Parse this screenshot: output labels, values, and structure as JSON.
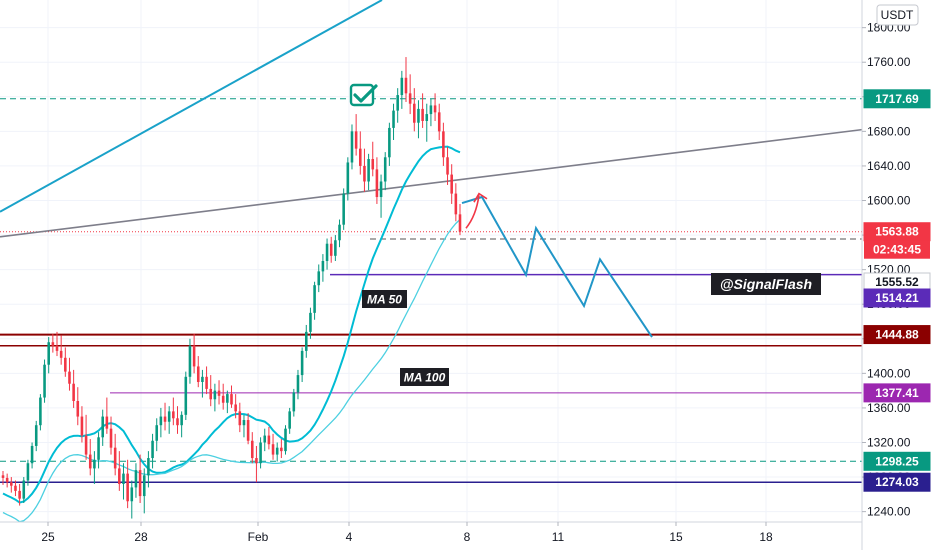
{
  "currency_label": "USDT",
  "chart_data": {
    "type": "candlestick",
    "ylim": [
      1228,
      1832
    ],
    "price_ticks": [
      "1240.00",
      "1280.00",
      "1320.00",
      "1360.00",
      "1400.00",
      "1440.00",
      "1480.00",
      "1520.00",
      "1560.00",
      "1600.00",
      "1640.00",
      "1680.00",
      "1720.00",
      "1760.00",
      "1800.00",
      "1840.00"
    ],
    "date_ticks": [
      "25",
      "28",
      "Feb",
      "4",
      "8",
      "11",
      "15",
      "18"
    ],
    "candles": [
      [
        1282,
        1287,
        1271,
        1279
      ],
      [
        1279,
        1284,
        1268,
        1274
      ],
      [
        1274,
        1280,
        1262,
        1270
      ],
      [
        1270,
        1276,
        1258,
        1264
      ],
      [
        1264,
        1272,
        1247,
        1255
      ],
      [
        1255,
        1280,
        1250,
        1276
      ],
      [
        1276,
        1300,
        1270,
        1296
      ],
      [
        1296,
        1320,
        1290,
        1316
      ],
      [
        1316,
        1345,
        1310,
        1340
      ],
      [
        1340,
        1376,
        1334,
        1372
      ],
      [
        1372,
        1416,
        1366,
        1410
      ],
      [
        1410,
        1442,
        1400,
        1436
      ],
      [
        1436,
        1446,
        1424,
        1432
      ],
      [
        1432,
        1448,
        1420,
        1426
      ],
      [
        1426,
        1444,
        1410,
        1418
      ],
      [
        1418,
        1430,
        1396,
        1402
      ],
      [
        1402,
        1418,
        1380,
        1388
      ],
      [
        1388,
        1404,
        1360,
        1368
      ],
      [
        1368,
        1384,
        1340,
        1350
      ],
      [
        1350,
        1362,
        1320,
        1328
      ],
      [
        1328,
        1352,
        1300,
        1306
      ],
      [
        1306,
        1324,
        1282,
        1290
      ],
      [
        1290,
        1310,
        1272,
        1300
      ],
      [
        1300,
        1332,
        1290,
        1326
      ],
      [
        1326,
        1358,
        1316,
        1350
      ],
      [
        1350,
        1372,
        1330,
        1336
      ],
      [
        1336,
        1350,
        1306,
        1314
      ],
      [
        1314,
        1330,
        1282,
        1290
      ],
      [
        1290,
        1310,
        1264,
        1272
      ],
      [
        1272,
        1296,
        1254,
        1284
      ],
      [
        1284,
        1300,
        1244,
        1252
      ],
      [
        1252,
        1276,
        1232,
        1268
      ],
      [
        1268,
        1296,
        1256,
        1288
      ],
      [
        1288,
        1306,
        1250,
        1258
      ],
      [
        1258,
        1290,
        1238,
        1282
      ],
      [
        1282,
        1310,
        1268,
        1302
      ],
      [
        1302,
        1330,
        1290,
        1322
      ],
      [
        1322,
        1348,
        1310,
        1340
      ],
      [
        1340,
        1360,
        1326,
        1350
      ],
      [
        1350,
        1366,
        1334,
        1344
      ],
      [
        1344,
        1362,
        1330,
        1356
      ],
      [
        1356,
        1372,
        1340,
        1348
      ],
      [
        1348,
        1362,
        1330,
        1340
      ],
      [
        1340,
        1356,
        1326,
        1352
      ],
      [
        1352,
        1402,
        1346,
        1396
      ],
      [
        1396,
        1440,
        1388,
        1432
      ],
      [
        1432,
        1446,
        1400,
        1408
      ],
      [
        1408,
        1420,
        1384,
        1390
      ],
      [
        1390,
        1404,
        1372,
        1396
      ],
      [
        1396,
        1408,
        1376,
        1382
      ],
      [
        1382,
        1398,
        1362,
        1370
      ],
      [
        1370,
        1388,
        1356,
        1380
      ],
      [
        1380,
        1392,
        1364,
        1374
      ],
      [
        1374,
        1388,
        1358,
        1366
      ],
      [
        1366,
        1380,
        1354,
        1376
      ],
      [
        1376,
        1386,
        1360,
        1364
      ],
      [
        1364,
        1376,
        1348,
        1356
      ],
      [
        1356,
        1366,
        1332,
        1340
      ],
      [
        1340,
        1352,
        1326,
        1346
      ],
      [
        1346,
        1354,
        1318,
        1322
      ],
      [
        1322,
        1332,
        1296,
        1302
      ],
      [
        1302,
        1316,
        1274,
        1296
      ],
      [
        1296,
        1326,
        1290,
        1320
      ],
      [
        1320,
        1336,
        1310,
        1328
      ],
      [
        1328,
        1338,
        1312,
        1318
      ],
      [
        1318,
        1330,
        1300,
        1306
      ],
      [
        1306,
        1320,
        1298,
        1314
      ],
      [
        1314,
        1324,
        1302,
        1310
      ],
      [
        1310,
        1340,
        1306,
        1336
      ],
      [
        1336,
        1360,
        1330,
        1356
      ],
      [
        1356,
        1382,
        1350,
        1378
      ],
      [
        1378,
        1404,
        1370,
        1398
      ],
      [
        1398,
        1430,
        1390,
        1426
      ],
      [
        1426,
        1456,
        1418,
        1448
      ],
      [
        1448,
        1476,
        1440,
        1470
      ],
      [
        1470,
        1506,
        1462,
        1502
      ],
      [
        1502,
        1526,
        1494,
        1518
      ],
      [
        1518,
        1538,
        1506,
        1530
      ],
      [
        1530,
        1556,
        1520,
        1550
      ],
      [
        1550,
        1558,
        1528,
        1536
      ],
      [
        1536,
        1560,
        1530,
        1554
      ],
      [
        1554,
        1578,
        1546,
        1572
      ],
      [
        1572,
        1614,
        1566,
        1608
      ],
      [
        1608,
        1650,
        1600,
        1644
      ],
      [
        1644,
        1688,
        1636,
        1680
      ],
      [
        1680,
        1700,
        1652,
        1660
      ],
      [
        1660,
        1680,
        1630,
        1640
      ],
      [
        1640,
        1660,
        1610,
        1622
      ],
      [
        1622,
        1654,
        1612,
        1648
      ],
      [
        1648,
        1668,
        1628,
        1636
      ],
      [
        1636,
        1650,
        1596,
        1604
      ],
      [
        1604,
        1630,
        1580,
        1622
      ],
      [
        1622,
        1656,
        1612,
        1650
      ],
      [
        1650,
        1690,
        1640,
        1684
      ],
      [
        1684,
        1712,
        1670,
        1704
      ],
      [
        1704,
        1730,
        1690,
        1722
      ],
      [
        1722,
        1750,
        1706,
        1742
      ],
      [
        1742,
        1766,
        1714,
        1724
      ],
      [
        1724,
        1746,
        1700,
        1712
      ],
      [
        1712,
        1730,
        1680,
        1690
      ],
      [
        1690,
        1716,
        1672,
        1706
      ],
      [
        1706,
        1724,
        1684,
        1692
      ],
      [
        1692,
        1712,
        1668,
        1700
      ],
      [
        1700,
        1718,
        1686,
        1710
      ],
      [
        1710,
        1724,
        1692,
        1702
      ],
      [
        1702,
        1712,
        1670,
        1680
      ],
      [
        1680,
        1690,
        1640,
        1650
      ],
      [
        1650,
        1662,
        1618,
        1630
      ],
      [
        1630,
        1642,
        1596,
        1608
      ],
      [
        1608,
        1620,
        1576,
        1584
      ],
      [
        1584,
        1596,
        1560,
        1564
      ]
    ],
    "horizontal_levels": [
      {
        "label": "1717.69",
        "value": 1717.69,
        "color": "#089981",
        "style": "dashed",
        "width": 1
      },
      {
        "label": "1563.88",
        "value": 1563.88,
        "color": "#f23645",
        "style": "dotted",
        "width": 1
      },
      {
        "label": "1555.52",
        "value": 1555.52,
        "color": "#555555",
        "style": "dashed",
        "width": 1
      },
      {
        "label": "1514.21",
        "value": 1514.21,
        "color": "#5b2bb8",
        "style": "solid",
        "width": 1.5
      },
      {
        "label": "1444.88",
        "value": 1444.88,
        "color": "#8b0000",
        "style": "solid",
        "width": 2
      },
      {
        "label": "1377.41",
        "value": 1377.41,
        "color": "#9c27b0",
        "style": "solid",
        "width": 1
      },
      {
        "label": "1298.25",
        "value": 1298.25,
        "color": "#089981",
        "style": "dashed",
        "width": 1
      },
      {
        "label": "1274.03",
        "value": 1274.03,
        "color": "#2a1f8f",
        "style": "solid",
        "width": 1.5
      }
    ],
    "current_price": "1563.88",
    "countdown": "02:43:45",
    "annotations": {
      "ma50": "MA 50",
      "ma100": "MA 100",
      "brand": "@SignalFlash"
    },
    "colors": {
      "up": "#089981",
      "down": "#f23645",
      "ma50": "#00bcd4",
      "ma100": "#4dd0e1",
      "projection": "#2196c8",
      "trendline": "#7e7e8a",
      "channel": "#1aa2c9",
      "arrow": "#f23645",
      "check": "#089981"
    }
  }
}
